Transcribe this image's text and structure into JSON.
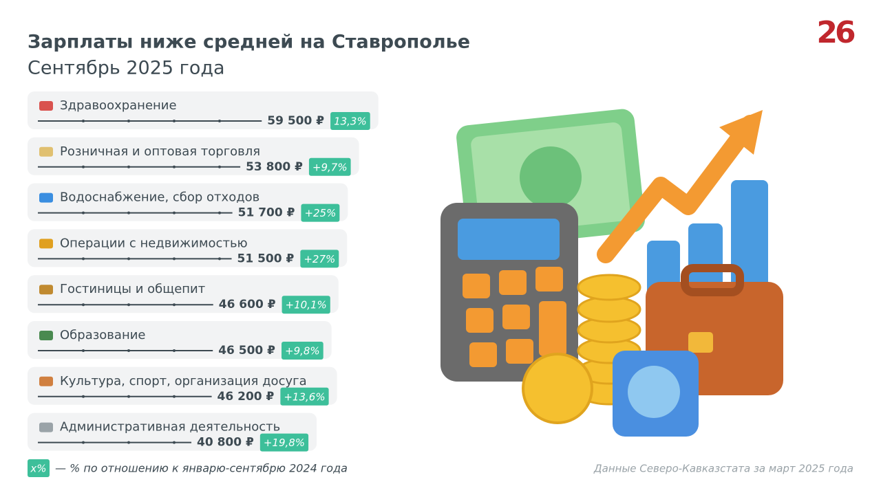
{
  "chart_data": {
    "type": "bar",
    "orientation": "horizontal",
    "title": "Зарплаты ниже средней на Ставрополье",
    "subtitle": "Сентябрь 2025 года",
    "logo": "26",
    "categories": [
      "Здравоохранение",
      "Розничная и оптовая торговля",
      "Водоснабжение, сбор отходов",
      "Операции с недвижимостью",
      "Гостиницы и общепит",
      "Образование",
      "Культура, спорт, организация досуга",
      "Административная деятельность"
    ],
    "values": [
      59500,
      53800,
      51700,
      51500,
      46600,
      46500,
      46200,
      40800
    ],
    "value_labels": [
      "59 500 ₽",
      "53 800 ₽",
      "51 700 ₽",
      "51 500 ₽",
      "46 600 ₽",
      "46 500 ₽",
      "46 200 ₽",
      "40 800 ₽"
    ],
    "changes": [
      13.3,
      9.7,
      25,
      27,
      10.1,
      9.8,
      13.6,
      19.8
    ],
    "change_labels": [
      "13,3%",
      "+9,7%",
      "+25%",
      "+27%",
      "+10,1%",
      "+9,8%",
      "+13,6%",
      "+19,8%"
    ],
    "xlim": [
      0,
      60000
    ],
    "color": "#3d4a52",
    "badge_color": "#3dbf9a",
    "legend_key": "x%",
    "legend_text": "— % по отношению к январю-сентябрю 2024 года",
    "source": "Данные Северо-Кавказстата за март 2025 года"
  }
}
